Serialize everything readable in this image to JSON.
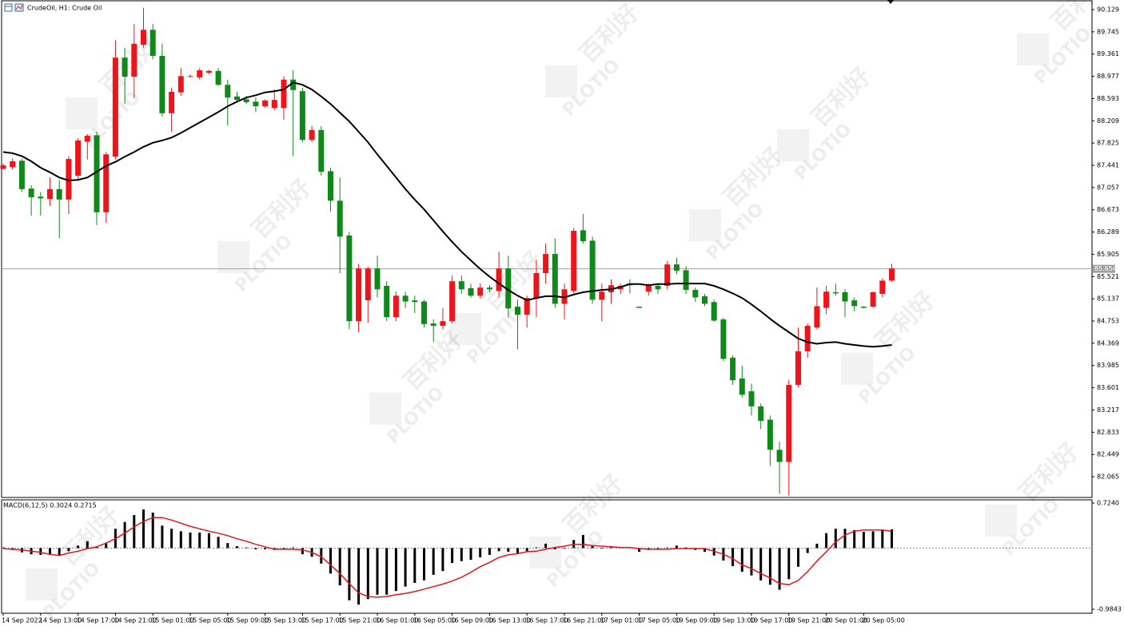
{
  "chart_data": [
    {
      "type": "candlestick",
      "title": "CrudeOil, H1:  Crude Oil",
      "categories": [
        "14 Sep 2022",
        null,
        null,
        null,
        "14 Sep 13:00",
        null,
        null,
        null,
        "14 Sep 17:00",
        null,
        null,
        null,
        "14 Sep 21:00",
        null,
        null,
        null,
        "15 Sep 01:00",
        null,
        null,
        null,
        "15 Sep 05:00",
        null,
        null,
        null,
        "15 Sep 09:00",
        null,
        null,
        null,
        "15 Sep 13:00",
        null,
        null,
        null,
        "15 Sep 17:00",
        null,
        null,
        null,
        "15 Sep 21:00",
        null,
        null,
        null,
        "16 Sep 01:00",
        null,
        null,
        null,
        "16 Sep 05:00",
        null,
        null,
        null,
        "16 Sep 09:00",
        null,
        null,
        null,
        "16 Sep 13:00",
        null,
        null,
        null,
        "16 Sep 17:00",
        null,
        null,
        null,
        "16 Sep 21:00",
        null,
        null,
        null,
        "17 Sep 01:00",
        null,
        null,
        null,
        "17 Sep 05:00",
        null,
        null,
        null,
        "19 Sep 09:00",
        null,
        null,
        null,
        "19 Sep 13:00",
        null,
        null,
        null,
        "19 Sep 17:00",
        null,
        null,
        null,
        "19 Sep 21:00",
        null,
        null,
        null,
        "20 Sep 01:00",
        null,
        null,
        null,
        "20 Sep 05:00",
        null,
        null,
        null
      ],
      "open": [
        87.38,
        87.41,
        87.52,
        87.04,
        86.9,
        86.86,
        87.03,
        86.85,
        87.26,
        87.85,
        87.96,
        86.63,
        87.59,
        89.3,
        88.97,
        89.52,
        89.78,
        89.33,
        88.34,
        88.7,
        88.97,
        88.96,
        89.04,
        89.07,
        88.83,
        88.63,
        88.58,
        88.54,
        88.46,
        88.43,
        88.43,
        88.92,
        88.72,
        87.88,
        88.05,
        87.34,
        86.83,
        86.23,
        84.75,
        85.11,
        85.66,
        85.36,
        84.82,
        85.19,
        85.11,
        85.09,
        84.71,
        84.67,
        84.75,
        85.44,
        85.32,
        85.19,
        85.33,
        85.27,
        85.66,
        85.0,
        84.86,
        85.14,
        85.58,
        85.91,
        85.05,
        85.27,
        86.32,
        86.14,
        85.12,
        85.25,
        85.3,
        85.4,
        85.0,
        85.26,
        85.36,
        85.36,
        85.73,
        85.63,
        85.29,
        85.18,
        85.08,
        84.78,
        84.12,
        83.76,
        83.54,
        83.28,
        83.05,
        82.53,
        82.32,
        83.65,
        84.23,
        84.64,
        84.98,
        85.25,
        85.25,
        85.11,
        85.0,
        85.0,
        85.22,
        85.45
      ],
      "high": [
        87.47,
        87.56,
        87.56,
        87.1,
        86.98,
        87.23,
        87.19,
        87.6,
        87.91,
        87.98,
        88.02,
        87.67,
        89.6,
        89.47,
        89.88,
        90.16,
        89.88,
        89.54,
        88.78,
        89.12,
        89.01,
        89.12,
        89.09,
        89.12,
        88.92,
        88.71,
        88.64,
        88.61,
        88.58,
        88.75,
        88.98,
        89.08,
        88.78,
        88.12,
        88.12,
        87.4,
        87.23,
        86.29,
        85.74,
        85.69,
        85.88,
        85.44,
        85.26,
        85.26,
        85.19,
        85.12,
        84.78,
        84.98,
        85.54,
        85.54,
        85.4,
        85.4,
        85.37,
        85.95,
        85.88,
        85.12,
        85.19,
        85.81,
        86.09,
        86.18,
        85.4,
        86.36,
        86.6,
        86.21,
        85.4,
        85.47,
        85.4,
        85.47,
        85.0,
        85.4,
        85.4,
        85.79,
        85.85,
        85.7,
        85.33,
        85.22,
        85.12,
        84.81,
        84.16,
        83.98,
        83.67,
        83.33,
        83.12,
        82.67,
        83.74,
        84.64,
        84.71,
        85.33,
        85.36,
        85.4,
        85.3,
        85.16,
        85.01,
        85.26,
        85.49,
        85.74
      ],
      "low": [
        87.37,
        87.37,
        86.98,
        86.57,
        86.57,
        86.74,
        86.18,
        86.6,
        87.19,
        87.54,
        86.41,
        86.45,
        87.54,
        88.5,
        88.6,
        89.47,
        89.27,
        88.28,
        88.02,
        88.64,
        88.96,
        88.92,
        89.01,
        88.81,
        88.13,
        88.53,
        88.5,
        88.36,
        88.43,
        88.39,
        88.23,
        87.6,
        87.84,
        87.84,
        87.26,
        86.64,
        85.58,
        84.61,
        84.56,
        84.72,
        85.16,
        84.75,
        84.75,
        84.98,
        84.89,
        84.64,
        84.39,
        84.61,
        84.71,
        85.22,
        85.16,
        85.14,
        85.25,
        85.16,
        84.81,
        84.27,
        84.64,
        84.82,
        85.4,
        84.98,
        84.78,
        85.23,
        86.09,
        85.05,
        84.75,
        85.05,
        85.22,
        85.23,
        84.98,
        85.19,
        85.22,
        85.3,
        85.56,
        85.22,
        85.08,
        85.01,
        84.74,
        84.06,
        83.65,
        83.43,
        83.12,
        82.89,
        82.25,
        81.77,
        81.74,
        83.61,
        84.12,
        84.61,
        84.87,
        85.19,
        84.82,
        84.92,
        84.97,
        84.98,
        85.16,
        85.43
      ],
      "close": [
        87.44,
        87.51,
        87.03,
        86.89,
        86.87,
        87.03,
        86.85,
        87.55,
        87.87,
        87.95,
        86.63,
        87.63,
        89.3,
        88.97,
        89.54,
        89.78,
        89.33,
        88.34,
        88.71,
        88.98,
        88.98,
        89.08,
        89.07,
        88.83,
        88.61,
        88.57,
        88.53,
        88.46,
        88.56,
        88.57,
        88.92,
        88.74,
        87.88,
        88.05,
        87.33,
        86.83,
        86.21,
        84.75,
        85.66,
        85.66,
        85.3,
        84.82,
        85.19,
        85.09,
        85.08,
        84.7,
        84.67,
        84.75,
        85.44,
        85.3,
        85.19,
        85.33,
        85.3,
        85.66,
        84.97,
        84.86,
        85.15,
        85.58,
        85.91,
        85.05,
        85.3,
        86.31,
        86.13,
        85.12,
        85.26,
        85.37,
        85.36,
        85.37,
        84.98,
        85.36,
        85.3,
        85.73,
        85.62,
        85.29,
        85.16,
        85.05,
        84.76,
        84.1,
        83.73,
        83.48,
        83.28,
        83.03,
        82.53,
        82.32,
        83.65,
        84.23,
        84.67,
        85.01,
        85.26,
        85.23,
        85.09,
        85.01,
        84.98,
        85.25,
        85.45,
        85.66
      ],
      "up_color": "#f0141a",
      "down_color": "#11891a",
      "ma": {
        "color": "#000000",
        "values": [
          87.67,
          87.65,
          87.6,
          87.51,
          87.4,
          87.32,
          87.23,
          87.18,
          87.19,
          87.23,
          87.33,
          87.43,
          87.5,
          87.59,
          87.67,
          87.76,
          87.83,
          87.87,
          87.92,
          88.0,
          88.09,
          88.18,
          88.27,
          88.36,
          88.46,
          88.54,
          88.61,
          88.65,
          88.7,
          88.72,
          88.75,
          88.87,
          88.83,
          88.75,
          88.63,
          88.5,
          88.35,
          88.2,
          88.02,
          87.84,
          87.63,
          87.43,
          87.23,
          87.03,
          86.85,
          86.68,
          86.49,
          86.3,
          86.12,
          85.95,
          85.8,
          85.65,
          85.52,
          85.4,
          85.29,
          85.19,
          85.11,
          85.15,
          85.18,
          85.18,
          85.16,
          85.21,
          85.25,
          85.27,
          85.29,
          85.3,
          85.34,
          85.39,
          85.39,
          85.37,
          85.39,
          85.39,
          85.4,
          85.4,
          85.4,
          85.4,
          85.36,
          85.3,
          85.23,
          85.15,
          85.04,
          84.92,
          84.79,
          84.67,
          84.56,
          84.45,
          84.39,
          84.36,
          84.38,
          84.39,
          84.36,
          84.34,
          84.32,
          84.31,
          84.32,
          84.34
        ]
      },
      "last_price": 85.654,
      "ylim": [
        81.707,
        90.267
      ],
      "yticks": [
        90.129,
        89.745,
        89.361,
        88.977,
        88.593,
        88.209,
        87.825,
        87.441,
        87.057,
        86.673,
        86.289,
        85.905,
        85.521,
        85.137,
        84.753,
        84.369,
        83.985,
        83.601,
        83.217,
        82.833,
        82.449,
        82.065
      ],
      "grid": false
    },
    {
      "type": "macd",
      "title": "MACD(6,12,5) 0.3024 0.2715",
      "histogram": {
        "color": "#000000",
        "values": [
          0.01,
          -0.03,
          -0.07,
          -0.1,
          -0.11,
          -0.1,
          -0.12,
          -0.05,
          0.04,
          0.11,
          0.02,
          0.08,
          0.31,
          0.42,
          0.53,
          0.62,
          0.57,
          0.36,
          0.31,
          0.27,
          0.25,
          0.25,
          0.24,
          0.18,
          0.08,
          0.03,
          0.01,
          -0.02,
          -0.02,
          -0.03,
          -0.02,
          0.01,
          -0.1,
          -0.14,
          -0.25,
          -0.41,
          -0.6,
          -0.84,
          -0.91,
          -0.82,
          -0.75,
          -0.75,
          -0.69,
          -0.62,
          -0.56,
          -0.52,
          -0.43,
          -0.37,
          -0.24,
          -0.21,
          -0.19,
          -0.15,
          -0.11,
          -0.05,
          -0.06,
          -0.09,
          -0.05,
          0.01,
          0.07,
          -0.02,
          -0.01,
          0.13,
          0.21,
          0.04,
          -0.01,
          0.01,
          0.01,
          0.01,
          -0.06,
          -0.03,
          -0.02,
          0.01,
          0.04,
          0.01,
          -0.03,
          -0.06,
          -0.12,
          -0.2,
          -0.29,
          -0.38,
          -0.44,
          -0.52,
          -0.59,
          -0.67,
          -0.5,
          -0.3,
          -0.08,
          0.07,
          0.24,
          0.31,
          0.31,
          0.29,
          0.26,
          0.27,
          0.29,
          0.3
        ]
      },
      "signal": {
        "color": "#e8141a",
        "values": [
          -0.01,
          -0.02,
          -0.03,
          -0.05,
          -0.07,
          -0.1,
          -0.12,
          -0.08,
          -0.05,
          -0.01,
          0.02,
          0.08,
          0.15,
          0.24,
          0.34,
          0.43,
          0.49,
          0.49,
          0.45,
          0.4,
          0.35,
          0.31,
          0.27,
          0.24,
          0.2,
          0.15,
          0.11,
          0.06,
          0.02,
          -0.02,
          -0.02,
          -0.02,
          -0.03,
          -0.07,
          -0.14,
          -0.27,
          -0.41,
          -0.57,
          -0.72,
          -0.78,
          -0.79,
          -0.78,
          -0.75,
          -0.73,
          -0.7,
          -0.66,
          -0.62,
          -0.58,
          -0.53,
          -0.47,
          -0.39,
          -0.3,
          -0.23,
          -0.15,
          -0.11,
          -0.09,
          -0.06,
          -0.05,
          -0.02,
          0.01,
          0.03,
          0.06,
          0.06,
          0.04,
          0.03,
          0.02,
          0.01,
          0.01,
          -0.01,
          -0.02,
          -0.02,
          -0.02,
          -0.01,
          -0.01,
          -0.01,
          -0.01,
          -0.05,
          -0.1,
          -0.17,
          -0.27,
          -0.33,
          -0.41,
          -0.48,
          -0.57,
          -0.59,
          -0.52,
          -0.38,
          -0.21,
          -0.06,
          0.1,
          0.21,
          0.27,
          0.29,
          0.29,
          0.29,
          0.27
        ]
      },
      "ylim": [
        -1.048,
        0.775
      ],
      "yticks": [
        {
          "value": 0.724,
          "label": "0.7240"
        },
        {
          "value": -0.9843,
          "label": "-0.9843"
        }
      ]
    }
  ],
  "watermark": {
    "brand": "百利好",
    "logo": "PLOTIO"
  }
}
